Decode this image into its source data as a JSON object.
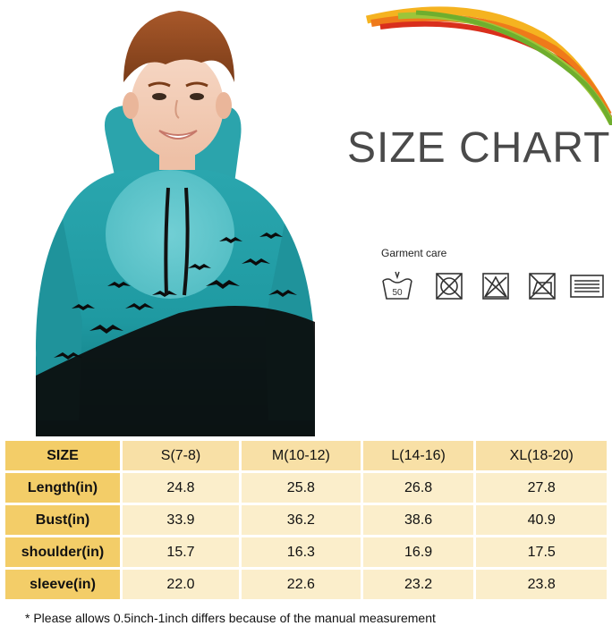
{
  "title": "SIZE CHART",
  "garment_care": {
    "label": "Garment care",
    "icons": [
      {
        "name": "wash-50-icon",
        "text": "50"
      },
      {
        "name": "do-not-tumble-dry-icon"
      },
      {
        "name": "do-not-bleach-icon"
      },
      {
        "name": "do-not-iron-icon"
      },
      {
        "name": "line-dry-icon"
      }
    ]
  },
  "colors": {
    "header_accent": "#f3cd68",
    "header_light": "#f8e0a6",
    "cell_bg": "#fbeecb",
    "hoodie": "#29a7ad"
  },
  "size_table": {
    "corner": "SIZE",
    "sizes": [
      "S(7-8)",
      "M(10-12)",
      "L(14-16)",
      "XL(18-20)"
    ],
    "rows": [
      {
        "label": "Length(in)",
        "values": [
          "24.8",
          "25.8",
          "26.8",
          "27.8"
        ]
      },
      {
        "label": "Bust(in)",
        "values": [
          "33.9",
          "36.2",
          "38.6",
          "40.9"
        ]
      },
      {
        "label": "shoulder(in)",
        "values": [
          "15.7",
          "16.3",
          "16.9",
          "17.5"
        ]
      },
      {
        "label": "sleeve(in)",
        "values": [
          "22.0",
          "22.6",
          "23.2",
          "23.8"
        ]
      }
    ]
  },
  "note": "* Please  allows 0.5inch-1inch differs because  of  the manual measurement"
}
